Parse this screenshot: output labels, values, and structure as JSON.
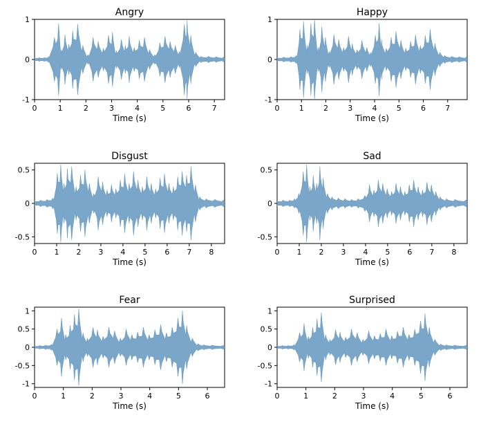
{
  "figure": {
    "background_color": "#ffffff",
    "panel_background": "#ffffff",
    "waveform_color": "#6397c0",
    "waveform_opacity": 0.85,
    "axis_color": "#000000",
    "tick_fontsize": 11,
    "title_fontsize": 14,
    "label_fontsize": 12,
    "xlabel": "Time (s)"
  },
  "panels": [
    {
      "title": "Angry",
      "ylim": [
        -1,
        1
      ],
      "yticks": [
        -1,
        0,
        1
      ],
      "xlim": [
        0,
        7.4
      ],
      "xticks": [
        0,
        1,
        2,
        3,
        4,
        5,
        6,
        7
      ],
      "envelope": [
        [
          0.0,
          0.04
        ],
        [
          0.2,
          0.05
        ],
        [
          0.4,
          0.05
        ],
        [
          0.55,
          0.07
        ],
        [
          0.8,
          0.55
        ],
        [
          0.95,
          0.9
        ],
        [
          1.05,
          0.25
        ],
        [
          1.2,
          0.62
        ],
        [
          1.35,
          0.38
        ],
        [
          1.5,
          0.72
        ],
        [
          1.7,
          0.88
        ],
        [
          1.9,
          0.35
        ],
        [
          2.1,
          0.12
        ],
        [
          2.3,
          0.55
        ],
        [
          2.5,
          0.45
        ],
        [
          2.7,
          0.28
        ],
        [
          2.9,
          0.6
        ],
        [
          3.05,
          0.68
        ],
        [
          3.2,
          0.22
        ],
        [
          3.4,
          0.5
        ],
        [
          3.55,
          0.35
        ],
        [
          3.7,
          0.58
        ],
        [
          3.9,
          0.3
        ],
        [
          4.1,
          0.48
        ],
        [
          4.3,
          0.55
        ],
        [
          4.5,
          0.25
        ],
        [
          4.7,
          0.12
        ],
        [
          4.9,
          0.42
        ],
        [
          5.1,
          0.58
        ],
        [
          5.3,
          0.45
        ],
        [
          5.5,
          0.35
        ],
        [
          5.65,
          0.2
        ],
        [
          5.85,
          0.88
        ],
        [
          5.95,
          0.98
        ],
        [
          6.1,
          0.6
        ],
        [
          6.3,
          0.18
        ],
        [
          6.5,
          0.08
        ],
        [
          6.8,
          0.08
        ],
        [
          7.1,
          0.07
        ],
        [
          7.4,
          0.06
        ]
      ]
    },
    {
      "title": "Happy",
      "ylim": [
        -1,
        1
      ],
      "yticks": [
        -1,
        0,
        1
      ],
      "xlim": [
        0,
        7.8
      ],
      "xticks": [
        0,
        1,
        2,
        3,
        4,
        5,
        6,
        7
      ],
      "envelope": [
        [
          0.0,
          0.05
        ],
        [
          0.3,
          0.06
        ],
        [
          0.6,
          0.07
        ],
        [
          0.8,
          0.1
        ],
        [
          0.95,
          0.75
        ],
        [
          1.1,
          0.95
        ],
        [
          1.25,
          0.35
        ],
        [
          1.4,
          0.9
        ],
        [
          1.55,
          1.0
        ],
        [
          1.7,
          0.3
        ],
        [
          1.85,
          0.82
        ],
        [
          2.0,
          0.55
        ],
        [
          2.15,
          0.2
        ],
        [
          2.35,
          0.62
        ],
        [
          2.55,
          0.5
        ],
        [
          2.75,
          0.3
        ],
        [
          2.95,
          0.58
        ],
        [
          3.1,
          0.4
        ],
        [
          3.3,
          0.25
        ],
        [
          3.5,
          0.48
        ],
        [
          3.7,
          0.3
        ],
        [
          3.85,
          0.18
        ],
        [
          4.05,
          0.6
        ],
        [
          4.2,
          0.9
        ],
        [
          4.3,
          0.5
        ],
        [
          4.5,
          0.28
        ],
        [
          4.7,
          0.55
        ],
        [
          4.9,
          0.7
        ],
        [
          5.1,
          0.48
        ],
        [
          5.3,
          0.28
        ],
        [
          5.5,
          0.45
        ],
        [
          5.7,
          0.62
        ],
        [
          5.9,
          0.35
        ],
        [
          6.1,
          0.6
        ],
        [
          6.3,
          0.75
        ],
        [
          6.5,
          0.4
        ],
        [
          6.7,
          0.18
        ],
        [
          6.9,
          0.1
        ],
        [
          7.2,
          0.08
        ],
        [
          7.5,
          0.07
        ],
        [
          7.8,
          0.06
        ]
      ]
    },
    {
      "title": "Disgust",
      "ylim": [
        -0.6,
        0.6
      ],
      "yticks": [
        -0.5,
        0.0,
        0.5
      ],
      "xlim": [
        0,
        8.6
      ],
      "xticks": [
        0,
        1,
        2,
        3,
        4,
        5,
        6,
        7,
        8
      ],
      "envelope": [
        [
          0.0,
          0.04
        ],
        [
          0.3,
          0.05
        ],
        [
          0.6,
          0.06
        ],
        [
          0.85,
          0.08
        ],
        [
          1.05,
          0.45
        ],
        [
          1.2,
          0.58
        ],
        [
          1.35,
          0.3
        ],
        [
          1.5,
          0.52
        ],
        [
          1.7,
          0.55
        ],
        [
          1.9,
          0.25
        ],
        [
          2.1,
          0.42
        ],
        [
          2.3,
          0.5
        ],
        [
          2.5,
          0.3
        ],
        [
          2.7,
          0.15
        ],
        [
          2.9,
          0.4
        ],
        [
          3.1,
          0.32
        ],
        [
          3.3,
          0.2
        ],
        [
          3.5,
          0.28
        ],
        [
          3.7,
          0.22
        ],
        [
          3.9,
          0.35
        ],
        [
          4.1,
          0.44
        ],
        [
          4.3,
          0.3
        ],
        [
          4.5,
          0.48
        ],
        [
          4.7,
          0.35
        ],
        [
          4.9,
          0.25
        ],
        [
          5.1,
          0.4
        ],
        [
          5.3,
          0.3
        ],
        [
          5.5,
          0.22
        ],
        [
          5.7,
          0.38
        ],
        [
          5.9,
          0.44
        ],
        [
          6.1,
          0.3
        ],
        [
          6.3,
          0.25
        ],
        [
          6.5,
          0.4
        ],
        [
          6.7,
          0.48
        ],
        [
          6.9,
          0.42
        ],
        [
          7.1,
          0.55
        ],
        [
          7.3,
          0.28
        ],
        [
          7.5,
          0.1
        ],
        [
          7.8,
          0.07
        ],
        [
          8.2,
          0.06
        ],
        [
          8.6,
          0.05
        ]
      ]
    },
    {
      "title": "Sad",
      "ylim": [
        -0.6,
        0.6
      ],
      "yticks": [
        -0.5,
        0.0,
        0.5
      ],
      "xlim": [
        0,
        8.6
      ],
      "xticks": [
        0,
        1,
        2,
        3,
        4,
        5,
        6,
        7,
        8
      ],
      "envelope": [
        [
          0.0,
          0.04
        ],
        [
          0.3,
          0.05
        ],
        [
          0.6,
          0.05
        ],
        [
          0.8,
          0.07
        ],
        [
          1.0,
          0.15
        ],
        [
          1.2,
          0.48
        ],
        [
          1.35,
          0.58
        ],
        [
          1.5,
          0.25
        ],
        [
          1.65,
          0.42
        ],
        [
          1.8,
          0.3
        ],
        [
          1.95,
          0.55
        ],
        [
          2.1,
          0.38
        ],
        [
          2.3,
          0.15
        ],
        [
          2.5,
          0.1
        ],
        [
          2.8,
          0.08
        ],
        [
          3.1,
          0.07
        ],
        [
          3.4,
          0.06
        ],
        [
          3.7,
          0.07
        ],
        [
          4.0,
          0.12
        ],
        [
          4.2,
          0.28
        ],
        [
          4.4,
          0.2
        ],
        [
          4.6,
          0.35
        ],
        [
          4.8,
          0.3
        ],
        [
          5.0,
          0.22
        ],
        [
          5.2,
          0.18
        ],
        [
          5.4,
          0.3
        ],
        [
          5.6,
          0.25
        ],
        [
          5.8,
          0.18
        ],
        [
          6.0,
          0.28
        ],
        [
          6.2,
          0.35
        ],
        [
          6.4,
          0.25
        ],
        [
          6.6,
          0.2
        ],
        [
          6.8,
          0.32
        ],
        [
          7.0,
          0.28
        ],
        [
          7.2,
          0.18
        ],
        [
          7.4,
          0.1
        ],
        [
          7.7,
          0.07
        ],
        [
          8.1,
          0.06
        ],
        [
          8.6,
          0.05
        ]
      ]
    },
    {
      "title": "Fear",
      "ylim": [
        -1.1,
        1.1
      ],
      "yticks": [
        -1.0,
        -0.5,
        0.0,
        0.5,
        1.0
      ],
      "xlim": [
        0,
        6.6
      ],
      "xticks": [
        0,
        1,
        2,
        3,
        4,
        5,
        6
      ],
      "envelope": [
        [
          0.0,
          0.04
        ],
        [
          0.2,
          0.05
        ],
        [
          0.4,
          0.06
        ],
        [
          0.6,
          0.08
        ],
        [
          0.8,
          0.5
        ],
        [
          0.95,
          0.8
        ],
        [
          1.1,
          0.35
        ],
        [
          1.25,
          0.6
        ],
        [
          1.4,
          0.9
        ],
        [
          1.55,
          1.05
        ],
        [
          1.7,
          0.4
        ],
        [
          1.85,
          0.25
        ],
        [
          2.05,
          0.55
        ],
        [
          2.2,
          0.48
        ],
        [
          2.4,
          0.3
        ],
        [
          2.6,
          0.55
        ],
        [
          2.8,
          0.45
        ],
        [
          3.0,
          0.25
        ],
        [
          3.2,
          0.5
        ],
        [
          3.4,
          0.35
        ],
        [
          3.6,
          0.42
        ],
        [
          3.8,
          0.55
        ],
        [
          4.0,
          0.35
        ],
        [
          4.2,
          0.48
        ],
        [
          4.4,
          0.62
        ],
        [
          4.6,
          0.4
        ],
        [
          4.8,
          0.55
        ],
        [
          5.0,
          0.8
        ],
        [
          5.15,
          1.0
        ],
        [
          5.3,
          0.6
        ],
        [
          5.5,
          0.25
        ],
        [
          5.7,
          0.1
        ],
        [
          5.9,
          0.07
        ],
        [
          6.2,
          0.06
        ],
        [
          6.6,
          0.05
        ]
      ]
    },
    {
      "title": "Surprised",
      "ylim": [
        -1.1,
        1.1
      ],
      "yticks": [
        -1.0,
        -0.5,
        0.0,
        0.5,
        1.0
      ],
      "xlim": [
        0,
        6.6
      ],
      "xticks": [
        0,
        1,
        2,
        3,
        4,
        5,
        6
      ],
      "envelope": [
        [
          0.0,
          0.04
        ],
        [
          0.2,
          0.05
        ],
        [
          0.4,
          0.05
        ],
        [
          0.6,
          0.07
        ],
        [
          0.8,
          0.4
        ],
        [
          0.95,
          0.65
        ],
        [
          1.1,
          0.3
        ],
        [
          1.25,
          0.55
        ],
        [
          1.4,
          0.78
        ],
        [
          1.55,
          0.95
        ],
        [
          1.7,
          0.35
        ],
        [
          1.85,
          0.22
        ],
        [
          2.05,
          0.48
        ],
        [
          2.2,
          0.42
        ],
        [
          2.4,
          0.28
        ],
        [
          2.6,
          0.5
        ],
        [
          2.8,
          0.4
        ],
        [
          3.0,
          0.22
        ],
        [
          3.2,
          0.45
        ],
        [
          3.4,
          0.32
        ],
        [
          3.6,
          0.38
        ],
        [
          3.8,
          0.5
        ],
        [
          4.0,
          0.32
        ],
        [
          4.2,
          0.44
        ],
        [
          4.4,
          0.55
        ],
        [
          4.6,
          0.36
        ],
        [
          4.8,
          0.5
        ],
        [
          5.0,
          0.72
        ],
        [
          5.15,
          0.92
        ],
        [
          5.3,
          0.55
        ],
        [
          5.5,
          0.22
        ],
        [
          5.7,
          0.09
        ],
        [
          5.9,
          0.07
        ],
        [
          6.2,
          0.06
        ],
        [
          6.6,
          0.05
        ]
      ]
    }
  ]
}
